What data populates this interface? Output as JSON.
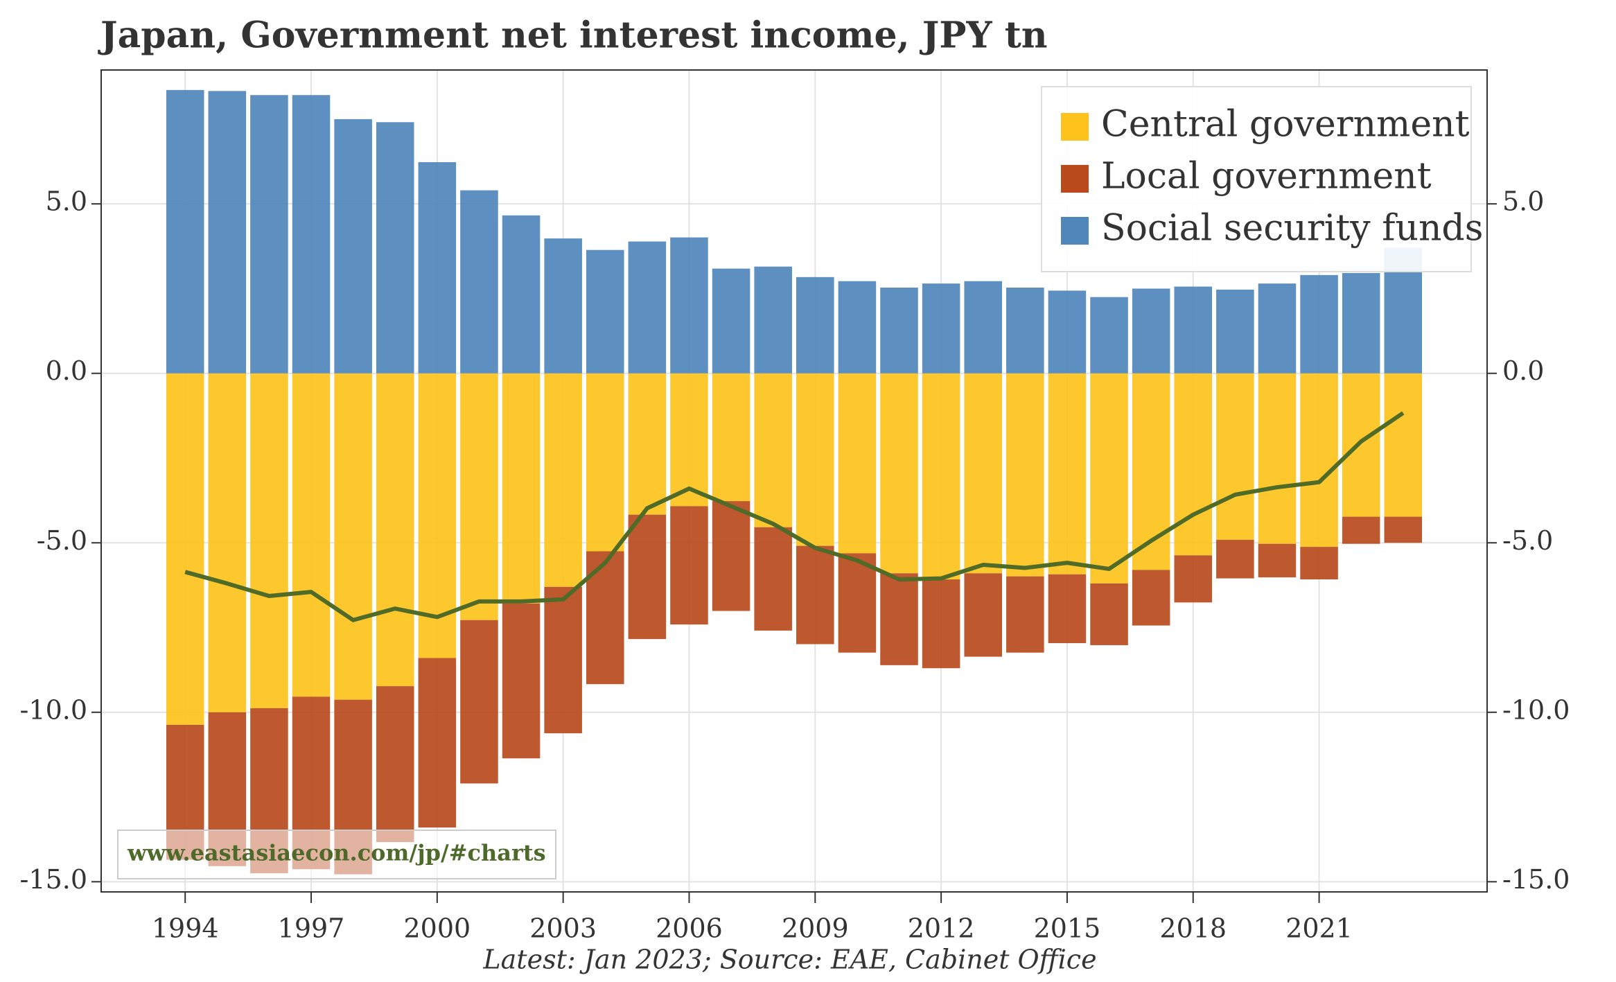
{
  "chart_data": {
    "type": "stacked-bar",
    "title": "Japan, Government net interest income, JPY tn",
    "caption": "Latest: Jan 2023; Source: EAE, Cabinet Office",
    "watermark": "www.eastasiaecon.com/jp/#charts",
    "x": [
      1994,
      1995,
      1996,
      1997,
      1998,
      1999,
      2000,
      2001,
      2002,
      2003,
      2004,
      2005,
      2006,
      2007,
      2008,
      2009,
      2010,
      2011,
      2012,
      2013,
      2014,
      2015,
      2016,
      2017,
      2018,
      2019,
      2020,
      2021,
      2022,
      2023
    ],
    "series": [
      {
        "name": "Central government",
        "color": "#fdc31c",
        "values": [
          -10.37,
          -10.0,
          -9.88,
          -9.54,
          -9.63,
          -9.23,
          -8.4,
          -7.28,
          -6.79,
          -6.3,
          -5.25,
          -4.17,
          -3.92,
          -3.77,
          -4.54,
          -5.09,
          -5.31,
          -5.9,
          -6.08,
          -5.9,
          -5.99,
          -5.93,
          -6.2,
          -5.8,
          -5.37,
          -4.91,
          -5.03,
          -5.12,
          -4.23,
          -4.23
        ]
      },
      {
        "name": "Local government",
        "color": "#b84a1c",
        "values": [
          -3.98,
          -4.54,
          -4.87,
          -5.09,
          -5.15,
          -4.6,
          -5.0,
          -4.82,
          -4.57,
          -4.32,
          -3.92,
          -3.67,
          -3.49,
          -3.24,
          -3.05,
          -2.9,
          -2.93,
          -2.71,
          -2.62,
          -2.46,
          -2.25,
          -2.03,
          -1.82,
          -1.64,
          -1.39,
          -1.14,
          -0.99,
          -0.96,
          -0.8,
          -0.77
        ]
      },
      {
        "name": "Social security funds",
        "color": "#4f87bb",
        "values": [
          8.36,
          8.33,
          8.21,
          8.21,
          7.5,
          7.41,
          6.23,
          5.4,
          4.66,
          3.98,
          3.64,
          3.89,
          4.01,
          3.09,
          3.15,
          2.84,
          2.72,
          2.53,
          2.65,
          2.72,
          2.53,
          2.44,
          2.25,
          2.5,
          2.56,
          2.47,
          2.65,
          2.9,
          2.96,
          3.7
        ]
      }
    ],
    "line": {
      "color": "#506b28",
      "values": [
        -5.86,
        -6.2,
        -6.57,
        -6.45,
        -7.28,
        -6.94,
        -7.19,
        -6.73,
        -6.73,
        -6.67,
        -5.59,
        -3.98,
        -3.4,
        -3.92,
        -4.44,
        -5.15,
        -5.52,
        -6.08,
        -6.05,
        -5.65,
        -5.74,
        -5.59,
        -5.77,
        -4.94,
        -4.17,
        -3.58,
        -3.36,
        -3.21,
        -2.01,
        -1.17
      ]
    },
    "xlim": [
      1992,
      2025
    ],
    "xticks": [
      1994,
      1997,
      2000,
      2003,
      2006,
      2009,
      2012,
      2015,
      2018,
      2021
    ],
    "ylim": [
      -15.3,
      8.95
    ],
    "yticks": [
      {
        "value": -15,
        "label": "-15.0"
      },
      {
        "value": -10,
        "label": "-10.0"
      },
      {
        "value": -5,
        "label": "-5.0"
      },
      {
        "value": 0,
        "label": "0.0"
      },
      {
        "value": 5,
        "label": "5.0"
      }
    ],
    "grid": true,
    "legend": "upper right"
  }
}
